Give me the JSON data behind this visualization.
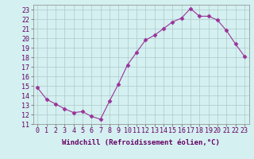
{
  "x": [
    0,
    1,
    2,
    3,
    4,
    5,
    6,
    7,
    8,
    9,
    10,
    11,
    12,
    13,
    14,
    15,
    16,
    17,
    18,
    19,
    20,
    21,
    22,
    23
  ],
  "y": [
    14.8,
    13.6,
    13.1,
    12.6,
    12.2,
    12.3,
    11.8,
    11.5,
    13.4,
    15.2,
    17.2,
    18.5,
    19.8,
    20.3,
    21.0,
    21.7,
    22.1,
    23.1,
    22.3,
    22.3,
    21.9,
    20.8,
    19.4,
    18.1
  ],
  "line_color": "#993399",
  "marker": "D",
  "marker_size": 2.5,
  "bg_color": "#d4f0f0",
  "grid_color": "#b0c8c8",
  "xlabel": "Windchill (Refroidissement éolien,°C)",
  "ylim": [
    11,
    23.5
  ],
  "xlim": [
    -0.5,
    23.5
  ],
  "yticks": [
    11,
    12,
    13,
    14,
    15,
    16,
    17,
    18,
    19,
    20,
    21,
    22,
    23
  ],
  "xticks": [
    0,
    1,
    2,
    3,
    4,
    5,
    6,
    7,
    8,
    9,
    10,
    11,
    12,
    13,
    14,
    15,
    16,
    17,
    18,
    19,
    20,
    21,
    22,
    23
  ],
  "xlabel_fontsize": 6.5,
  "tick_fontsize": 6,
  "label_color": "#660066",
  "spine_color": "#888888",
  "tick_color": "#888888"
}
